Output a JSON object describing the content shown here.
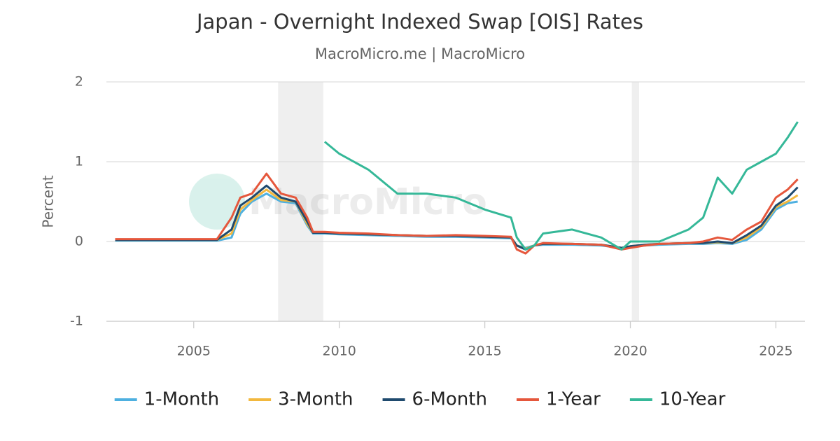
{
  "chart_data": {
    "type": "line",
    "title": "Japan - Overnight Indexed Swap [OIS] Rates",
    "subtitle": "MacroMicro.me | MacroMicro",
    "watermark": "MacroMicro",
    "y_label": "Percent",
    "x": [
      2002.3,
      2003,
      2004,
      2005,
      2005.8,
      2006.3,
      2006.6,
      2007,
      2007.5,
      2008,
      2008.5,
      2008.9,
      2009.1,
      2009.5,
      2010,
      2011,
      2012,
      2013,
      2014,
      2015,
      2015.9,
      2016.1,
      2016.4,
      2016.7,
      2017,
      2018,
      2019,
      2019.7,
      2020,
      2020.5,
      2021,
      2022,
      2022.5,
      2023,
      2023.5,
      2024,
      2024.5,
      2025,
      2025.4,
      2025.75
    ],
    "series": [
      {
        "name": "1-Month",
        "color": "#4eb0e0",
        "values": [
          0.01,
          0.01,
          0.01,
          0.01,
          0.01,
          0.05,
          0.35,
          0.5,
          0.6,
          0.5,
          0.48,
          0.2,
          0.1,
          0.1,
          0.09,
          0.08,
          0.07,
          0.06,
          0.06,
          0.05,
          0.04,
          -0.05,
          -0.08,
          -0.05,
          -0.04,
          -0.04,
          -0.05,
          -0.08,
          -0.06,
          -0.05,
          -0.04,
          -0.03,
          -0.03,
          -0.02,
          -0.03,
          0.02,
          0.15,
          0.4,
          0.48,
          0.5
        ]
      },
      {
        "name": "3-Month",
        "color": "#f2b83e",
        "values": [
          0.02,
          0.02,
          0.02,
          0.02,
          0.02,
          0.1,
          0.4,
          0.52,
          0.65,
          0.52,
          0.5,
          0.22,
          0.11,
          0.11,
          0.1,
          0.09,
          0.08,
          0.07,
          0.07,
          0.06,
          0.05,
          -0.05,
          -0.09,
          -0.05,
          -0.03,
          -0.03,
          -0.04,
          -0.08,
          -0.06,
          -0.04,
          -0.03,
          -0.02,
          -0.02,
          -0.01,
          -0.02,
          0.05,
          0.18,
          0.43,
          0.5,
          0.58
        ]
      },
      {
        "name": "6-Month",
        "color": "#1f4a6e",
        "values": [
          0.02,
          0.02,
          0.02,
          0.02,
          0.02,
          0.15,
          0.45,
          0.55,
          0.7,
          0.55,
          0.5,
          0.25,
          0.11,
          0.11,
          0.1,
          0.09,
          0.08,
          0.07,
          0.07,
          0.06,
          0.05,
          -0.05,
          -0.1,
          -0.05,
          -0.03,
          -0.03,
          -0.04,
          -0.08,
          -0.06,
          -0.04,
          -0.03,
          -0.02,
          -0.02,
          0.0,
          -0.02,
          0.08,
          0.2,
          0.45,
          0.55,
          0.68
        ]
      },
      {
        "name": "1-Year",
        "color": "#e5573c",
        "values": [
          0.03,
          0.03,
          0.03,
          0.03,
          0.03,
          0.3,
          0.55,
          0.6,
          0.85,
          0.6,
          0.55,
          0.3,
          0.12,
          0.12,
          0.11,
          0.1,
          0.08,
          0.07,
          0.08,
          0.07,
          0.06,
          -0.1,
          -0.15,
          -0.05,
          -0.02,
          -0.03,
          -0.04,
          -0.1,
          -0.08,
          -0.05,
          -0.03,
          -0.02,
          0.0,
          0.05,
          0.02,
          0.15,
          0.25,
          0.55,
          0.65,
          0.78
        ]
      },
      {
        "name": "10-Year",
        "color": "#35b898",
        "values": [
          null,
          null,
          null,
          null,
          null,
          null,
          null,
          null,
          null,
          null,
          null,
          null,
          null,
          1.25,
          1.1,
          0.9,
          0.6,
          0.6,
          0.55,
          0.4,
          0.3,
          0.05,
          -0.1,
          -0.05,
          0.1,
          0.15,
          0.05,
          -0.1,
          0.0,
          0.0,
          0.0,
          0.15,
          0.3,
          0.8,
          0.6,
          0.9,
          1.0,
          1.1,
          1.3,
          1.5
        ]
      }
    ],
    "recessions": [
      [
        2007.9,
        2009.45
      ],
      [
        2020.05,
        2020.3
      ]
    ],
    "xlim": [
      2002,
      2026
    ],
    "xticks": [
      2005,
      2010,
      2015,
      2020,
      2025
    ],
    "ylim": [
      -1,
      2
    ],
    "yticks": [
      -1,
      0,
      1,
      2
    ],
    "grid": true,
    "legend": "bottom"
  }
}
